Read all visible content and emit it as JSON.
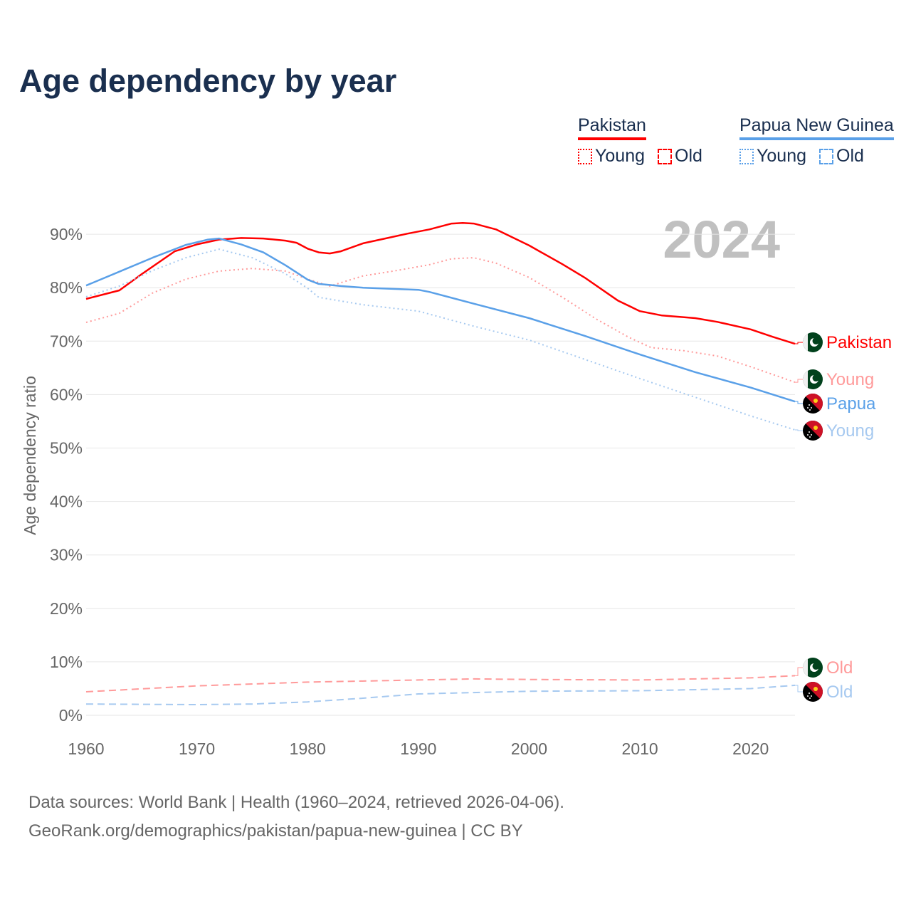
{
  "title": "Age dependency by year",
  "legend": {
    "groups": [
      {
        "name": "Pakistan",
        "color": "#ff0000",
        "items": [
          "Young",
          "Old"
        ]
      },
      {
        "name": "Papua New Guinea",
        "color": "#5aa0e8",
        "items": [
          "Young",
          "Old"
        ]
      }
    ]
  },
  "footer": {
    "line1": "Data sources: World Bank | Health (1960–2024, retrieved 2026-04-06).",
    "line2": "GeoRank.org/demographics/pakistan/papua-new-guinea | CC BY"
  },
  "chart_data": {
    "type": "line",
    "title": "Age dependency by year",
    "ylabel": "Age dependency ratio",
    "xlabel": "",
    "year_label": "2024",
    "xlim": [
      1960,
      2024
    ],
    "ylim": [
      0,
      95
    ],
    "x_ticks": [
      1960,
      1970,
      1980,
      1990,
      2000,
      2010,
      2020
    ],
    "y_ticks": [
      "0%",
      "10%",
      "20%",
      "30%",
      "40%",
      "50%",
      "60%",
      "70%",
      "80%",
      "90%"
    ],
    "y_tick_values": [
      0,
      10,
      20,
      30,
      40,
      50,
      60,
      70,
      80,
      90
    ],
    "grid": true,
    "series": [
      {
        "name": "Pakistan",
        "end_label": "Pakistan",
        "flag": "pakistan-flag",
        "color": "#ff0000",
        "style": "solid",
        "x": [
          1960,
          1963,
          1965,
          1968,
          1970,
          1972,
          1974,
          1976,
          1978,
          1979,
          1980,
          1981,
          1982,
          1983,
          1985,
          1987,
          1989,
          1991,
          1993,
          1994,
          1995,
          1997,
          2000,
          2003,
          2005,
          2008,
          2010,
          2012,
          2015,
          2017,
          2020,
          2022,
          2024
        ],
        "y": [
          77.9,
          79.5,
          82.5,
          86.8,
          88.1,
          89.0,
          89.3,
          89.2,
          88.8,
          88.4,
          87.3,
          86.6,
          86.4,
          86.8,
          88.3,
          89.2,
          90.1,
          90.9,
          92.0,
          92.1,
          92.0,
          90.9,
          87.9,
          84.4,
          81.9,
          77.6,
          75.6,
          74.8,
          74.3,
          73.6,
          72.2,
          70.8,
          69.5
        ]
      },
      {
        "name": "Pakistan Young",
        "end_label": "Young",
        "flag": "pakistan-flag",
        "color": "#ff9a9a",
        "style": "dotted",
        "x": [
          1960,
          1963,
          1966,
          1969,
          1972,
          1975,
          1978,
          1980,
          1982,
          1985,
          1988,
          1991,
          1993,
          1995,
          1997,
          2000,
          2003,
          2006,
          2009,
          2011,
          2014,
          2017,
          2020,
          2024
        ],
        "y": [
          73.5,
          75.2,
          79.0,
          81.6,
          83.1,
          83.6,
          83.1,
          81.6,
          80.3,
          82.2,
          83.2,
          84.3,
          85.4,
          85.6,
          84.6,
          81.9,
          78.2,
          74.2,
          70.7,
          68.8,
          68.2,
          67.2,
          65.2,
          62.3
        ]
      },
      {
        "name": "Pakistan Old",
        "end_label": "Old",
        "flag": "pakistan-flag",
        "color": "#ff9a9a",
        "style": "dashed",
        "x": [
          1960,
          1970,
          1980,
          1990,
          1995,
          2000,
          2010,
          2020,
          2024
        ],
        "y": [
          4.4,
          5.5,
          6.2,
          6.6,
          6.8,
          6.7,
          6.6,
          7.0,
          7.4
        ]
      },
      {
        "name": "Papua New Guinea",
        "end_label": "Papua",
        "flag": "png-flag",
        "color": "#5aa0e8",
        "style": "solid",
        "x": [
          1960,
          1963,
          1966,
          1969,
          1971,
          1972,
          1974,
          1976,
          1978,
          1980,
          1981,
          1983,
          1985,
          1990,
          1991,
          1995,
          2000,
          2005,
          2010,
          2015,
          2020,
          2024
        ],
        "y": [
          80.4,
          83.0,
          85.6,
          88.0,
          89.0,
          89.2,
          88.1,
          86.6,
          84.2,
          81.5,
          80.7,
          80.3,
          80.0,
          79.6,
          79.2,
          77.0,
          74.3,
          71.0,
          67.5,
          64.2,
          61.3,
          58.7
        ]
      },
      {
        "name": "Papua New Guinea Young",
        "end_label": "Young",
        "flag": "png-flag",
        "color": "#a6c9f0",
        "style": "dotted",
        "x": [
          1960,
          1963,
          1966,
          1969,
          1972,
          1975,
          1978,
          1980,
          1981,
          1985,
          1990,
          1995,
          2000,
          2005,
          2010,
          2015,
          2020,
          2024
        ],
        "y": [
          78.3,
          80.3,
          83.2,
          85.6,
          87.2,
          85.6,
          82.6,
          79.9,
          78.2,
          76.8,
          75.6,
          72.8,
          70.2,
          66.6,
          63.0,
          59.5,
          56.0,
          53.4
        ]
      },
      {
        "name": "Papua New Guinea Old",
        "end_label": "Old",
        "flag": "png-flag",
        "color": "#a6c9f0",
        "style": "dashed",
        "x": [
          1960,
          1970,
          1975,
          1980,
          1985,
          1990,
          2000,
          2010,
          2020,
          2024
        ],
        "y": [
          2.1,
          2.0,
          2.1,
          2.5,
          3.2,
          4.0,
          4.5,
          4.6,
          5.0,
          5.6
        ]
      }
    ]
  }
}
